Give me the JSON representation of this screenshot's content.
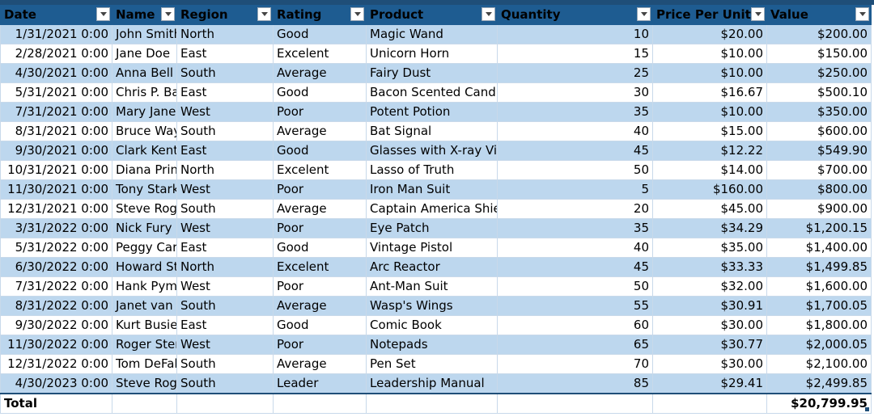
{
  "headers": [
    "Date",
    "Name",
    "Region",
    "Rating",
    "Product",
    "Quantity",
    "Price Per Unit",
    "Value"
  ],
  "rows": [
    {
      "date": "1/31/2021 0:00",
      "name": "John Smith",
      "region": "North",
      "rating": "Good",
      "product": "Magic Wand",
      "quantity": "10",
      "price": "$20.00",
      "value": "$200.00"
    },
    {
      "date": "2/28/2021 0:00",
      "name": "Jane Doe",
      "region": "East",
      "rating": "Excelent",
      "product": "Unicorn Horn",
      "quantity": "15",
      "price": "$10.00",
      "value": "$150.00"
    },
    {
      "date": "4/30/2021 0:00",
      "name": "Anna Bell",
      "region": "South",
      "rating": "Average",
      "product": "Fairy Dust",
      "quantity": "25",
      "price": "$10.00",
      "value": "$250.00"
    },
    {
      "date": "5/31/2021 0:00",
      "name": "Chris P. Bacon",
      "region": "East",
      "rating": "Good",
      "product": "Bacon Scented Candle",
      "quantity": "30",
      "price": "$16.67",
      "value": "$500.10"
    },
    {
      "date": "7/31/2021 0:00",
      "name": "Mary Jane",
      "region": "West",
      "rating": "Poor",
      "product": "Potent Potion",
      "quantity": "35",
      "price": "$10.00",
      "value": "$350.00"
    },
    {
      "date": "8/31/2021 0:00",
      "name": "Bruce Wayne",
      "region": "South",
      "rating": "Average",
      "product": "Bat Signal",
      "quantity": "40",
      "price": "$15.00",
      "value": "$600.00"
    },
    {
      "date": "9/30/2021 0:00",
      "name": "Clark Kent",
      "region": "East",
      "rating": "Good",
      "product": "Glasses with X-ray Vision",
      "quantity": "45",
      "price": "$12.22",
      "value": "$549.90"
    },
    {
      "date": "10/31/2021 0:00",
      "name": "Diana Prince",
      "region": "North",
      "rating": "Excelent",
      "product": "Lasso of Truth",
      "quantity": "50",
      "price": "$14.00",
      "value": "$700.00"
    },
    {
      "date": "11/30/2021 0:00",
      "name": "Tony Stark",
      "region": "West",
      "rating": "Poor",
      "product": "Iron Man Suit",
      "quantity": "5",
      "price": "$160.00",
      "value": "$800.00"
    },
    {
      "date": "12/31/2021 0:00",
      "name": "Steve Rogers",
      "region": "South",
      "rating": "Average",
      "product": "Captain America Shield",
      "quantity": "20",
      "price": "$45.00",
      "value": "$900.00"
    },
    {
      "date": "3/31/2022 0:00",
      "name": "Nick Fury",
      "region": "West",
      "rating": "Poor",
      "product": "Eye Patch",
      "quantity": "35",
      "price": "$34.29",
      "value": "$1,200.15"
    },
    {
      "date": "5/31/2022 0:00",
      "name": "Peggy Carter",
      "region": "East",
      "rating": "Good",
      "product": "Vintage Pistol",
      "quantity": "40",
      "price": "$35.00",
      "value": "$1,400.00"
    },
    {
      "date": "6/30/2022 0:00",
      "name": "Howard Stark",
      "region": "North",
      "rating": "Excelent",
      "product": "Arc Reactor",
      "quantity": "45",
      "price": "$33.33",
      "value": "$1,499.85"
    },
    {
      "date": "7/31/2022 0:00",
      "name": "Hank Pym",
      "region": "West",
      "rating": "Poor",
      "product": "Ant-Man Suit",
      "quantity": "50",
      "price": "$32.00",
      "value": "$1,600.00"
    },
    {
      "date": "8/31/2022 0:00",
      "name": "Janet van Dyne",
      "region": "South",
      "rating": "Average",
      "product": "Wasp's Wings",
      "quantity": "55",
      "price": "$30.91",
      "value": "$1,700.05"
    },
    {
      "date": "9/30/2022 0:00",
      "name": "Kurt Busiek",
      "region": "East",
      "rating": "Good",
      "product": "Comic Book",
      "quantity": "60",
      "price": "$30.00",
      "value": "$1,800.00"
    },
    {
      "date": "11/30/2022 0:00",
      "name": "Roger Stern",
      "region": "West",
      "rating": "Poor",
      "product": "Notepads",
      "quantity": "65",
      "price": "$30.77",
      "value": "$2,000.05"
    },
    {
      "date": "12/31/2022 0:00",
      "name": "Tom DeFalco",
      "region": "South",
      "rating": "Average",
      "product": "Pen Set",
      "quantity": "70",
      "price": "$30.00",
      "value": "$2,100.00"
    },
    {
      "date": "4/30/2023 0:00",
      "name": "Steve Rogers",
      "region": "South",
      "rating": "Leader",
      "product": "Leadership Manual",
      "quantity": "85",
      "price": "$29.41",
      "value": "$2,499.85"
    }
  ],
  "total": {
    "label": "Total",
    "value": "$20,799.95"
  },
  "colors": {
    "header": "#1e5c91",
    "band": "#bdd7ee",
    "border": "#c8d9ea"
  }
}
